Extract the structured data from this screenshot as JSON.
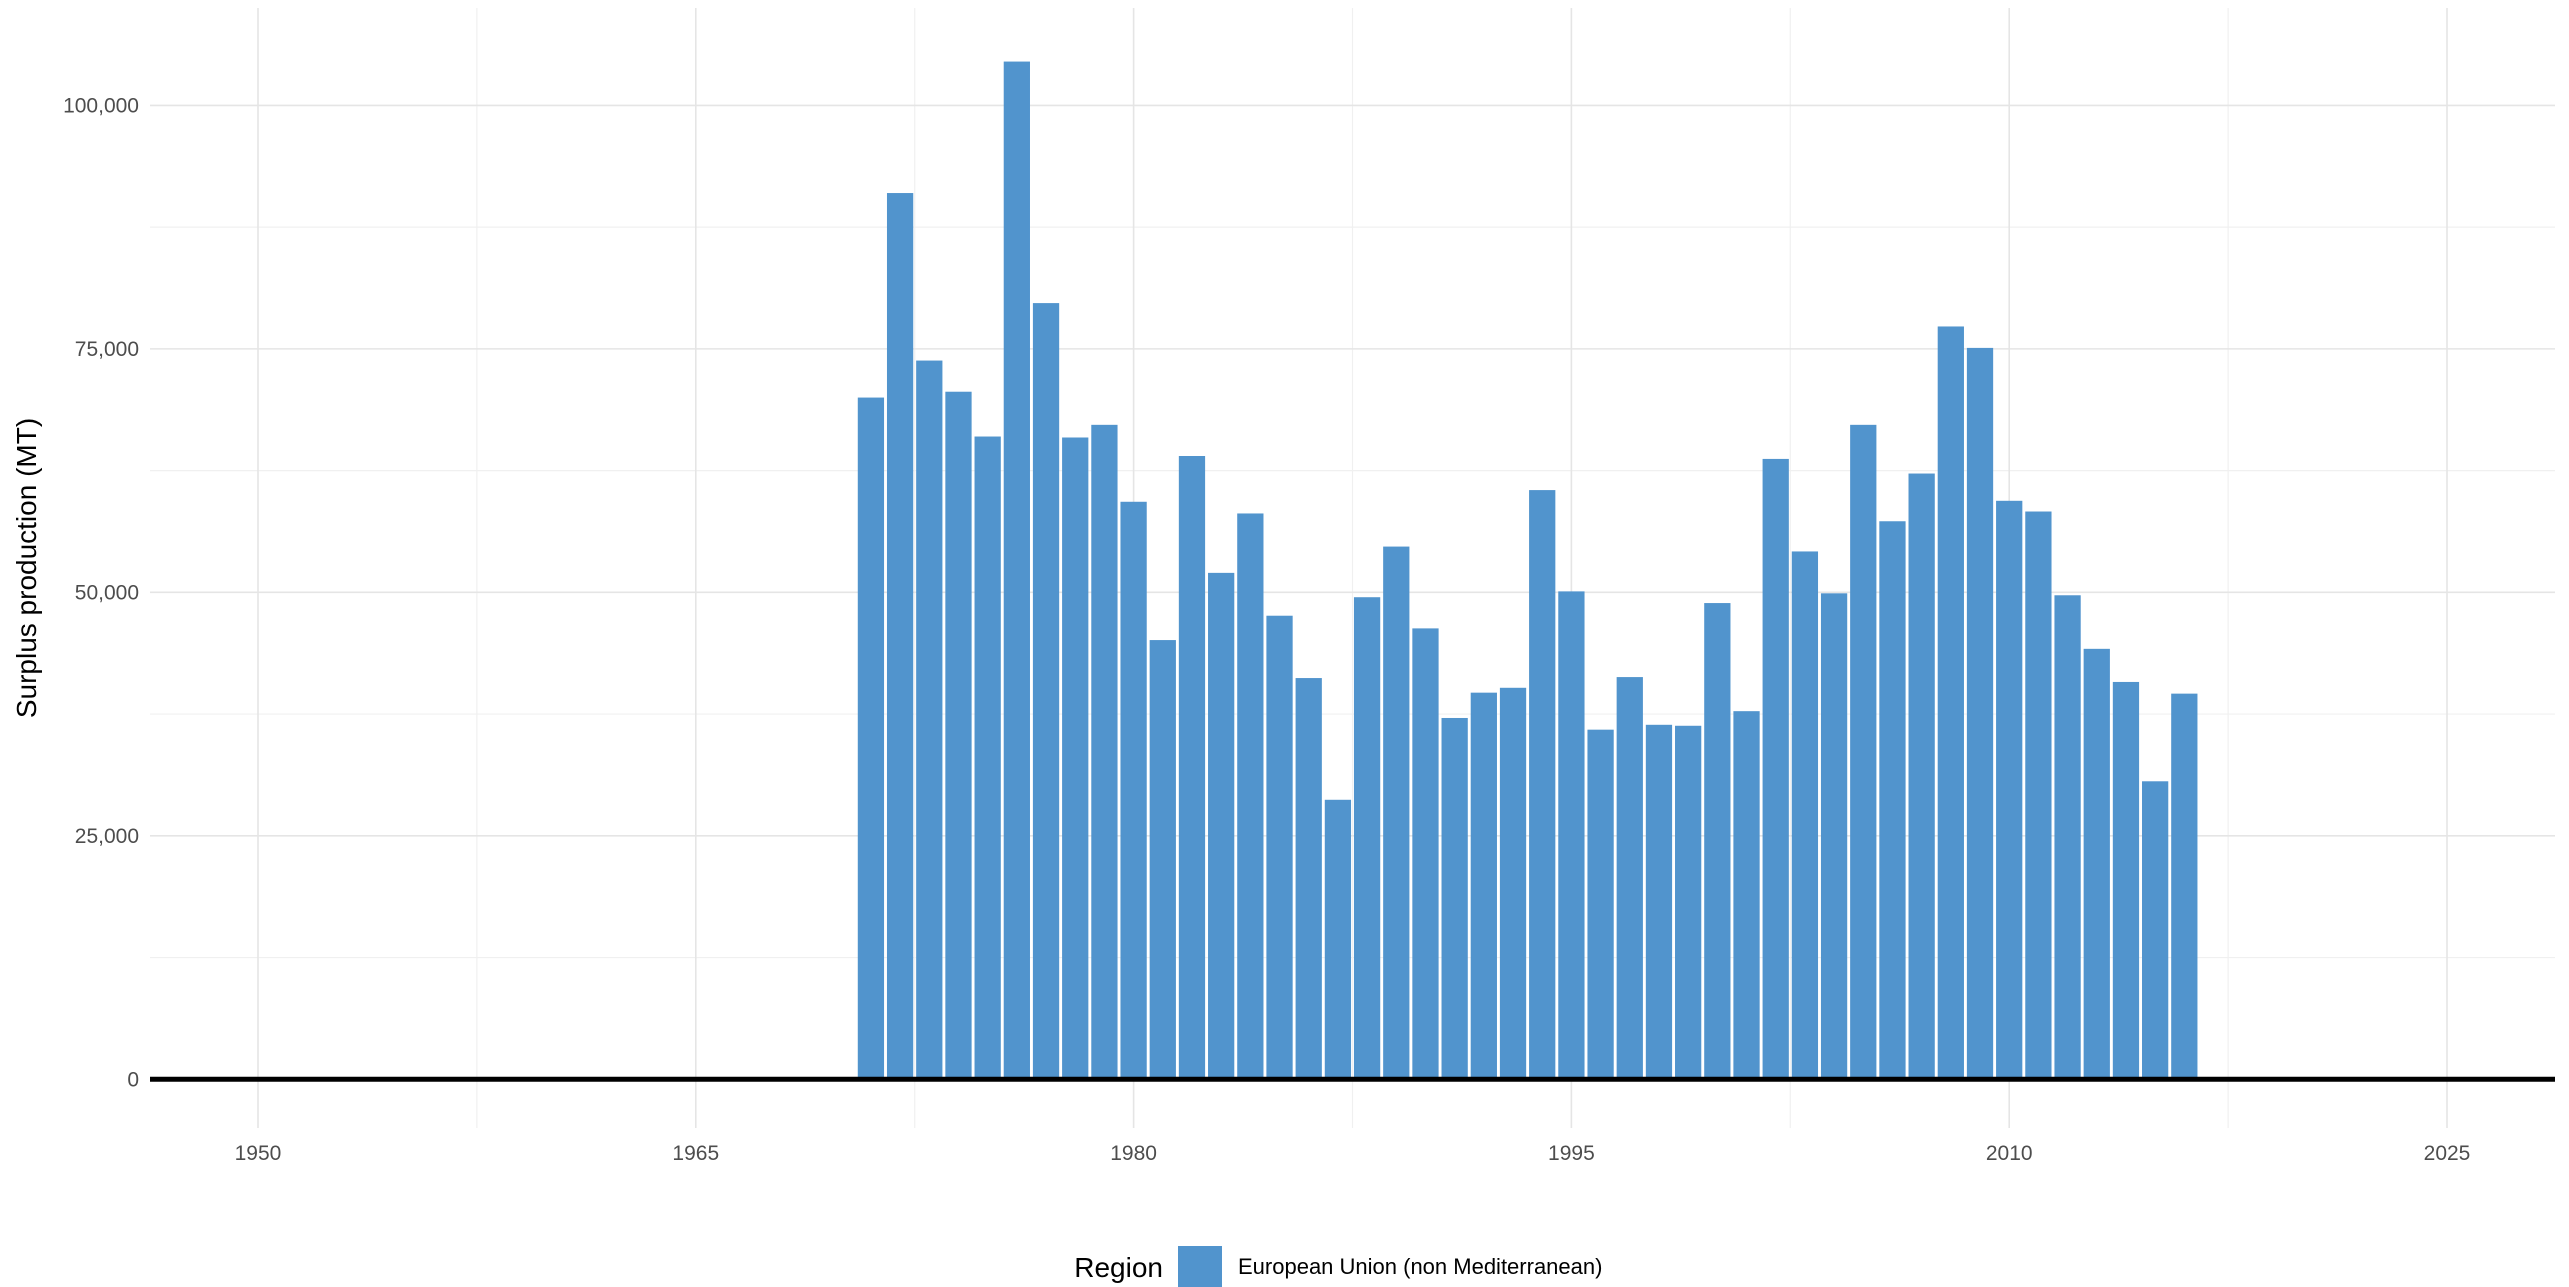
{
  "chart_data": {
    "type": "bar",
    "ylabel": "Surplus production (MT)",
    "xlabel": "",
    "xlim": [
      1946.3,
      2028.7
    ],
    "ylim": [
      -5000,
      110000
    ],
    "x_ticks": [
      1950,
      1965,
      1980,
      1995,
      2010,
      2025
    ],
    "x_tick_labels": [
      "1950",
      "1965",
      "1980",
      "1995",
      "2010",
      "2025"
    ],
    "y_ticks": [
      0,
      25000,
      50000,
      75000,
      100000
    ],
    "y_tick_labels": [
      "0",
      "25,000",
      "50,000",
      "75,000",
      "100,000"
    ],
    "grid": true,
    "legend": {
      "position": "bottom",
      "title": "Region",
      "entries": [
        {
          "label": "European Union (non Mediterranean)",
          "color": "#5194cd"
        }
      ]
    },
    "series": [
      {
        "name": "European Union (non Mediterranean)",
        "color": "#5194cd",
        "x": [
          1971,
          1972,
          1973,
          1974,
          1975,
          1976,
          1977,
          1978,
          1979,
          1980,
          1981,
          1982,
          1983,
          1984,
          1985,
          1986,
          1987,
          1988,
          1989,
          1990,
          1991,
          1992,
          1993,
          1994,
          1995,
          1996,
          1997,
          1998,
          1999,
          2000,
          2001,
          2002,
          2003,
          2004,
          2005,
          2006,
          2007,
          2008,
          2009,
          2010,
          2011,
          2012,
          2013,
          2014,
          2015,
          2016,
          2017
        ],
        "values": [
          70000,
          91000,
          73800,
          70600,
          66000,
          104500,
          79700,
          65900,
          67200,
          59300,
          45100,
          64000,
          52000,
          58100,
          47600,
          41200,
          28700,
          49500,
          54700,
          46300,
          37100,
          39700,
          40200,
          60500,
          50100,
          35900,
          41300,
          36400,
          36300,
          48900,
          37800,
          63700,
          54200,
          49900,
          67200,
          57300,
          62200,
          77300,
          75100,
          59400,
          58300,
          49700,
          44200,
          40800,
          30600,
          39600,
          0
        ]
      }
    ]
  }
}
